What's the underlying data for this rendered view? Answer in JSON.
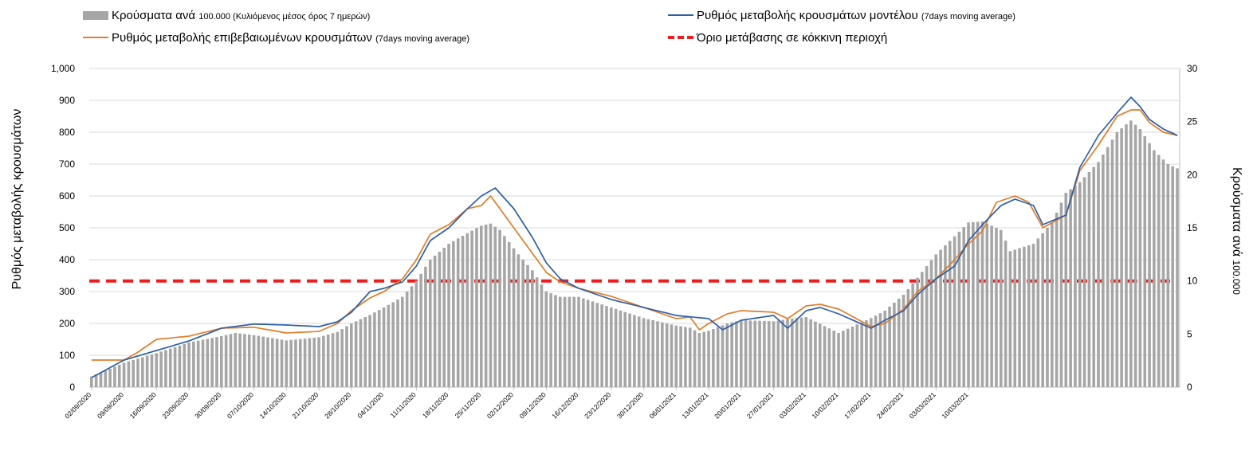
{
  "legend": {
    "bars": {
      "main": "Κρούσματα ανά ",
      "num": "100.000",
      "rest": " (Κυλιόμενος μέσος όρος 7 ημερών)"
    },
    "model": {
      "main": "Ρυθμός μεταβολής κρουσμάτων μοντέλου ",
      "small": "(7days moving average)"
    },
    "confirmed": {
      "main": "Ρυθμός μεταβολής επιβεβαιωμένων κρουσμάτων ",
      "small": "(7days moving average)"
    },
    "threshold": {
      "main": "Όριο μετάβασης σε κόκκινη περιοχή"
    }
  },
  "axes": {
    "left_label": "Ρυθμός μεταβολής κρουσμάτων",
    "right_label_main": "Κρούσματα ανά ",
    "right_label_num": "100.000"
  },
  "colors": {
    "bars": "#a6a6a6",
    "model": "#2e5fa8",
    "confirmed": "#e07d2a",
    "threshold": "#ee1c1c",
    "grid": "#d9d9d9"
  },
  "chart_data": {
    "type": "bar+line",
    "x_ticks": [
      "02/09/2020",
      "09/09/2020",
      "16/09/2020",
      "23/09/2020",
      "30/09/2020",
      "07/10/2020",
      "14/10/2020",
      "21/10/2020",
      "28/10/2020",
      "04/11/2020",
      "11/11/2020",
      "18/11/2020",
      "25/11/2020",
      "02/12/2020",
      "09/12/2020",
      "16/12/2020",
      "23/12/2020",
      "30/12/2020",
      "06/01/2021",
      "13/01/2021",
      "20/01/2021",
      "27/01/2021",
      "03/02/2021",
      "10/02/2021",
      "17/02/2021",
      "24/02/2021",
      "03/03/2021",
      "10/03/2021"
    ],
    "left_axis": {
      "min": 0,
      "max": 1000,
      "step": 100,
      "label": "Ρυθμός μεταβολής κρουσμάτων"
    },
    "right_axis": {
      "min": 0,
      "max": 30,
      "step": 5,
      "label": "Κρούσματα ανά 100.000"
    },
    "threshold_value": 333,
    "bars_keyframes": [
      [
        0,
        1
      ],
      [
        7,
        2.3
      ],
      [
        14,
        3.2
      ],
      [
        21,
        4.2
      ],
      [
        28,
        4.8
      ],
      [
        31,
        5.1
      ],
      [
        35,
        4.9
      ],
      [
        42,
        4.4
      ],
      [
        49,
        4.7
      ],
      [
        53,
        5.2
      ],
      [
        56,
        6
      ],
      [
        60,
        6.8
      ],
      [
        63,
        7.5
      ],
      [
        67,
        8.5
      ],
      [
        70,
        10
      ],
      [
        73,
        12
      ],
      [
        77,
        13.5
      ],
      [
        81,
        14.5
      ],
      [
        84,
        15.2
      ],
      [
        86,
        15.4
      ],
      [
        88,
        14.8
      ],
      [
        92,
        12.5
      ],
      [
        95,
        11
      ],
      [
        98,
        9
      ],
      [
        101,
        8.5
      ],
      [
        105,
        8.5
      ],
      [
        112,
        7.5
      ],
      [
        119,
        6.5
      ],
      [
        126,
        5.8
      ],
      [
        129,
        5.6
      ],
      [
        131,
        5.1
      ],
      [
        133,
        5.3
      ],
      [
        137,
        6
      ],
      [
        140,
        6.3
      ],
      [
        147,
        6.2
      ],
      [
        150,
        6.4
      ],
      [
        154,
        6.6
      ],
      [
        161,
        5.1
      ],
      [
        168,
        6.5
      ],
      [
        171,
        7.2
      ],
      [
        175,
        8.7
      ],
      [
        178,
        10.3
      ],
      [
        182,
        12.5
      ],
      [
        186,
        14.2
      ],
      [
        189,
        15.5
      ],
      [
        192,
        15.6
      ],
      [
        196,
        14.8
      ],
      [
        198,
        12.8
      ],
      [
        203,
        13.5
      ],
      [
        207,
        15.5
      ],
      [
        210,
        18.3
      ],
      [
        213,
        19.3
      ],
      [
        217,
        21.2
      ],
      [
        221,
        24
      ],
      [
        224,
        25.1
      ],
      [
        226,
        24.3
      ],
      [
        229,
        22.3
      ],
      [
        232,
        21
      ],
      [
        234,
        20.6
      ]
    ],
    "model_keyframes": [
      [
        0,
        30
      ],
      [
        7,
        85
      ],
      [
        14,
        115
      ],
      [
        21,
        145
      ],
      [
        28,
        185
      ],
      [
        35,
        198
      ],
      [
        42,
        195
      ],
      [
        49,
        190
      ],
      [
        53,
        205
      ],
      [
        56,
        235
      ],
      [
        60,
        300
      ],
      [
        63,
        310
      ],
      [
        67,
        330
      ],
      [
        70,
        380
      ],
      [
        73,
        460
      ],
      [
        77,
        500
      ],
      [
        81,
        560
      ],
      [
        84,
        600
      ],
      [
        87,
        625
      ],
      [
        91,
        560
      ],
      [
        95,
        470
      ],
      [
        98,
        390
      ],
      [
        101,
        340
      ],
      [
        105,
        310
      ],
      [
        112,
        275
      ],
      [
        119,
        250
      ],
      [
        126,
        225
      ],
      [
        133,
        215
      ],
      [
        136,
        180
      ],
      [
        140,
        210
      ],
      [
        147,
        225
      ],
      [
        150,
        185
      ],
      [
        154,
        240
      ],
      [
        157,
        250
      ],
      [
        161,
        230
      ],
      [
        168,
        185
      ],
      [
        171,
        210
      ],
      [
        175,
        240
      ],
      [
        178,
        290
      ],
      [
        182,
        340
      ],
      [
        186,
        380
      ],
      [
        189,
        460
      ],
      [
        192,
        510
      ],
      [
        196,
        570
      ],
      [
        199,
        590
      ],
      [
        203,
        570
      ],
      [
        205,
        510
      ],
      [
        210,
        540
      ],
      [
        213,
        690
      ],
      [
        217,
        790
      ],
      [
        221,
        860
      ],
      [
        224,
        910
      ],
      [
        226,
        880
      ],
      [
        228,
        840
      ],
      [
        231,
        810
      ],
      [
        234,
        790
      ]
    ],
    "confirmed_keyframes": [
      [
        0,
        85
      ],
      [
        7,
        85
      ],
      [
        10,
        110
      ],
      [
        14,
        150
      ],
      [
        21,
        160
      ],
      [
        28,
        185
      ],
      [
        35,
        188
      ],
      [
        42,
        170
      ],
      [
        49,
        175
      ],
      [
        53,
        200
      ],
      [
        56,
        240
      ],
      [
        60,
        280
      ],
      [
        63,
        300
      ],
      [
        67,
        340
      ],
      [
        70,
        400
      ],
      [
        73,
        480
      ],
      [
        77,
        510
      ],
      [
        81,
        560
      ],
      [
        84,
        570
      ],
      [
        86,
        600
      ],
      [
        91,
        500
      ],
      [
        95,
        420
      ],
      [
        98,
        360
      ],
      [
        101,
        330
      ],
      [
        105,
        310
      ],
      [
        112,
        285
      ],
      [
        119,
        250
      ],
      [
        126,
        215
      ],
      [
        129,
        220
      ],
      [
        131,
        180
      ],
      [
        133,
        200
      ],
      [
        137,
        230
      ],
      [
        140,
        240
      ],
      [
        147,
        235
      ],
      [
        150,
        215
      ],
      [
        154,
        255
      ],
      [
        157,
        260
      ],
      [
        161,
        245
      ],
      [
        168,
        190
      ],
      [
        171,
        200
      ],
      [
        175,
        245
      ],
      [
        178,
        300
      ],
      [
        182,
        340
      ],
      [
        186,
        400
      ],
      [
        189,
        450
      ],
      [
        192,
        490
      ],
      [
        195,
        580
      ],
      [
        199,
        600
      ],
      [
        202,
        580
      ],
      [
        205,
        500
      ],
      [
        210,
        540
      ],
      [
        213,
        680
      ],
      [
        217,
        760
      ],
      [
        221,
        850
      ],
      [
        224,
        870
      ],
      [
        226,
        870
      ],
      [
        228,
        830
      ],
      [
        231,
        800
      ],
      [
        234,
        790
      ]
    ]
  }
}
